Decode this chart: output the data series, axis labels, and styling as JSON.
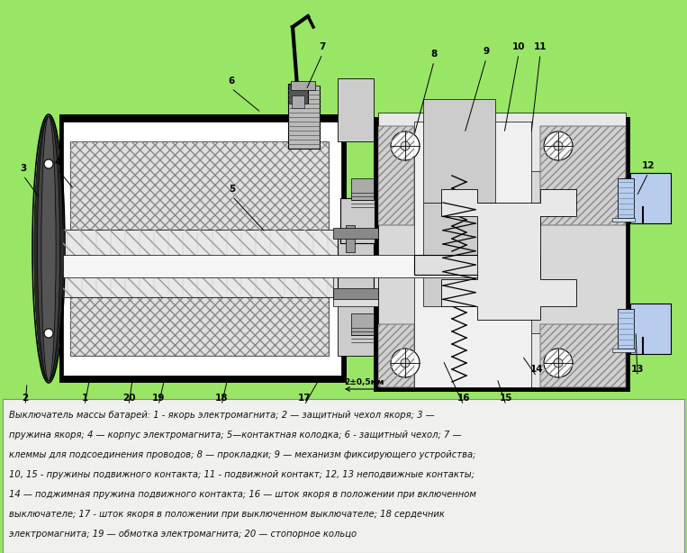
{
  "bg_color": "#99e666",
  "text_box_bg": "#f2f2f2",
  "text_box_border": "#999999",
  "text_color": "#111111",
  "black": "#000000",
  "white": "#ffffff",
  "light_blue": "#b8ccee",
  "gray_light": "#d8d8d8",
  "gray_mid": "#aaaaaa",
  "gray_dark": "#555555",
  "font_size_label": 7.5,
  "font_size_text": 7.2,
  "text_lines": [
    "Выключатель массы батарей: 1 - якорь электромагнита; 2 — защитный чехол якоря; 3 —",
    "пружина якоря; 4 — корпус электромагнита; 5—контактная колодка; 6 - защитный чехол; 7 —",
    "клеммы для подсоединения проводов; 8 — прокладки; 9 — механизм фиксирующего устройства;",
    "10, 15 - пружины подвижного контакта; 11 - подвижной контакт; 12, 13 неподвижные контакты;",
    "14 — поджимная пружина подвижного контакта; 16 — шток якоря в положении при включенном",
    "выключателе; 17 - шток якоря в положении при выключенном выключателе; 18 сердечник",
    "электромагнита; 19 — обмотка электромагнита; 20 — стопорное кольцо"
  ]
}
